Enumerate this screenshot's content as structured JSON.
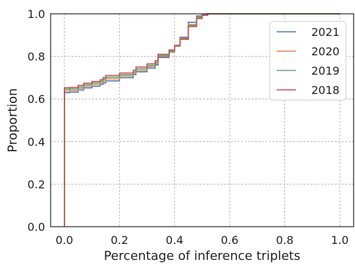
{
  "chart_data": {
    "type": "line",
    "title": "",
    "xlabel": "Percentage of inference triplets",
    "ylabel": "Proportion",
    "xlim": [
      -0.05,
      1.05
    ],
    "ylim": [
      0.0,
      1.0
    ],
    "xticks": [
      "0.0",
      "0.2",
      "0.4",
      "0.6",
      "0.8",
      "1.0"
    ],
    "yticks": [
      "0.0",
      "0.2",
      "0.4",
      "0.6",
      "0.8",
      "1.0"
    ],
    "grid": true,
    "legend_position": "top-right",
    "series": [
      {
        "name": "2021",
        "color": "#4c72b0",
        "x": [
          0.0,
          0.0,
          0.02,
          0.05,
          0.07,
          0.1,
          0.13,
          0.14,
          0.15,
          0.2,
          0.25,
          0.26,
          0.3,
          0.33,
          0.34,
          0.38,
          0.4,
          0.42,
          0.45,
          0.48,
          0.5,
          0.52,
          1.0
        ],
        "y": [
          0.0,
          0.63,
          0.632,
          0.642,
          0.652,
          0.66,
          0.668,
          0.675,
          0.685,
          0.7,
          0.715,
          0.728,
          0.745,
          0.76,
          0.795,
          0.82,
          0.848,
          0.89,
          0.96,
          0.99,
          0.996,
          1.0,
          1.0
        ]
      },
      {
        "name": "2020",
        "color": "#dd8452",
        "x": [
          0.0,
          0.0,
          0.02,
          0.05,
          0.07,
          0.1,
          0.13,
          0.14,
          0.15,
          0.2,
          0.25,
          0.26,
          0.3,
          0.33,
          0.34,
          0.38,
          0.4,
          0.42,
          0.45,
          0.48,
          0.5,
          0.52,
          1.0
        ],
        "y": [
          0.0,
          0.638,
          0.64,
          0.65,
          0.66,
          0.668,
          0.676,
          0.684,
          0.694,
          0.708,
          0.722,
          0.735,
          0.752,
          0.766,
          0.8,
          0.822,
          0.848,
          0.885,
          0.95,
          0.985,
          0.995,
          1.0,
          1.0
        ]
      },
      {
        "name": "2019",
        "color": "#55a868",
        "x": [
          0.0,
          0.0,
          0.02,
          0.05,
          0.07,
          0.1,
          0.13,
          0.14,
          0.15,
          0.2,
          0.25,
          0.26,
          0.3,
          0.33,
          0.34,
          0.38,
          0.4,
          0.42,
          0.45,
          0.48,
          0.5,
          0.52,
          1.0
        ],
        "y": [
          0.0,
          0.645,
          0.647,
          0.657,
          0.667,
          0.675,
          0.683,
          0.692,
          0.702,
          0.715,
          0.728,
          0.742,
          0.758,
          0.772,
          0.804,
          0.825,
          0.85,
          0.882,
          0.945,
          0.982,
          0.994,
          1.0,
          1.0
        ]
      },
      {
        "name": "2018",
        "color": "#c44e52",
        "x": [
          0.0,
          0.0,
          0.02,
          0.05,
          0.07,
          0.1,
          0.13,
          0.14,
          0.15,
          0.2,
          0.25,
          0.26,
          0.3,
          0.33,
          0.34,
          0.38,
          0.4,
          0.42,
          0.45,
          0.48,
          0.5,
          0.52,
          1.0
        ],
        "y": [
          0.0,
          0.652,
          0.654,
          0.664,
          0.674,
          0.682,
          0.69,
          0.7,
          0.71,
          0.722,
          0.735,
          0.75,
          0.765,
          0.78,
          0.81,
          0.83,
          0.852,
          0.88,
          0.94,
          0.978,
          0.993,
          1.0,
          1.0
        ]
      }
    ]
  }
}
